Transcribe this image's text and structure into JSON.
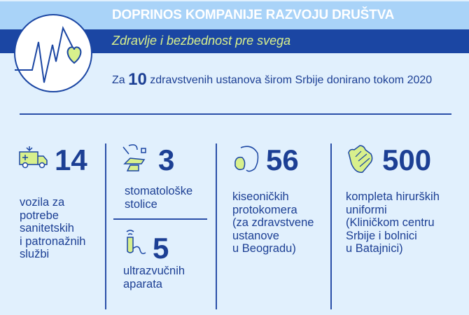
{
  "header": {
    "title": "DOPRINOS KOMPANIJE RAZVOJU DRUŠTVA",
    "subtitle": "Zdravlje i bezbednost pre svega"
  },
  "intro": {
    "prefix": "Za",
    "count": "10",
    "suffix": "zdravstvenih ustanova širom Srbije donirano tokom 2020"
  },
  "stats": [
    {
      "icon": "ambulance-icon",
      "value": "14",
      "label": "vozila za\npotrebe\nsanitetskih\ni patronažnih\nslužbi"
    },
    {
      "icon": "dental-chair-icon",
      "value": "3",
      "label": "stomatološke\nstolice"
    },
    {
      "icon": "ultrasound-probe-icon",
      "value": "5",
      "label": "ultrazvučnih\naparata"
    },
    {
      "icon": "oxygen-mask-icon",
      "value": "56",
      "label": "kiseoničkih\nprotokomera\n(za zdravstvene\nustanove\nu Beogradu)"
    },
    {
      "icon": "gloves-icon",
      "value": "500",
      "label": "kompleta hirurških\nuniformi\n(Kliničkom centru\nSrbije i bolnici\nu Batajnici)"
    }
  ],
  "colors": {
    "dark_blue": "#1b46a3",
    "light_blue": "#a9d3f8",
    "background": "#e1f0fd",
    "accent_lime": "#d8f08c"
  }
}
